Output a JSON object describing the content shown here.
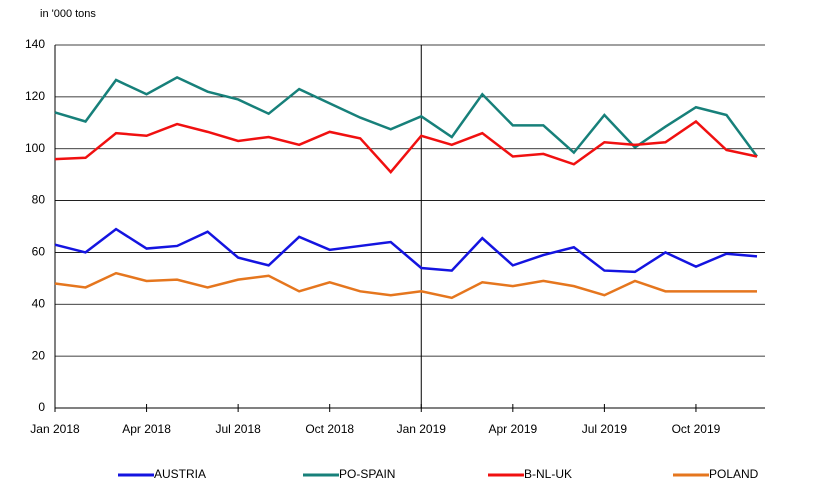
{
  "chart_data": {
    "type": "line",
    "subtitle": "in '000 tons",
    "categories": [
      "Jan 2018",
      null,
      null,
      "Apr 2018",
      null,
      null,
      "Jul 2018",
      null,
      null,
      "Oct 2018",
      null,
      null,
      "Jan 2019",
      null,
      null,
      "Apr 2019",
      null,
      null,
      "Jul 2019",
      null,
      null,
      "Oct 2019",
      null,
      null
    ],
    "series": [
      {
        "name": "AUSTRIA",
        "color": "#1414e0",
        "values": [
          63,
          60,
          69,
          61.5,
          62.5,
          68,
          58,
          55,
          66,
          61,
          62.5,
          64,
          54,
          53,
          65.5,
          55,
          59,
          62,
          53,
          52.5,
          60,
          54.5,
          59.5,
          58.5
        ]
      },
      {
        "name": "PO-SPAIN",
        "color": "#17807a",
        "values": [
          114,
          110.5,
          126.5,
          121,
          127.5,
          122,
          119,
          113.5,
          123,
          117.5,
          112,
          107.5,
          112.5,
          104.5,
          121,
          109,
          109,
          98.5,
          113,
          100.5,
          108.5,
          116,
          113,
          97
        ]
      },
      {
        "name": "B-NL-UK",
        "color": "#f01010",
        "values": [
          96,
          96.5,
          106,
          105,
          109.5,
          106.5,
          103,
          104.5,
          101.5,
          106.5,
          104,
          91,
          105,
          101.5,
          106,
          97,
          98,
          94,
          102.5,
          101.5,
          102.5,
          110.5,
          99.5,
          97
        ]
      },
      {
        "name": "POLAND",
        "color": "#e5761e",
        "values": [
          48,
          46.5,
          52,
          49,
          49.5,
          46.5,
          49.5,
          51,
          45,
          48.5,
          45,
          43.5,
          45,
          42.5,
          48.5,
          47,
          49,
          47,
          43.5,
          49,
          45,
          45,
          45,
          45
        ]
      }
    ],
    "ylim": [
      0,
      140
    ],
    "yticks": [
      0,
      20,
      40,
      60,
      80,
      100,
      120,
      140
    ],
    "grid": true
  }
}
